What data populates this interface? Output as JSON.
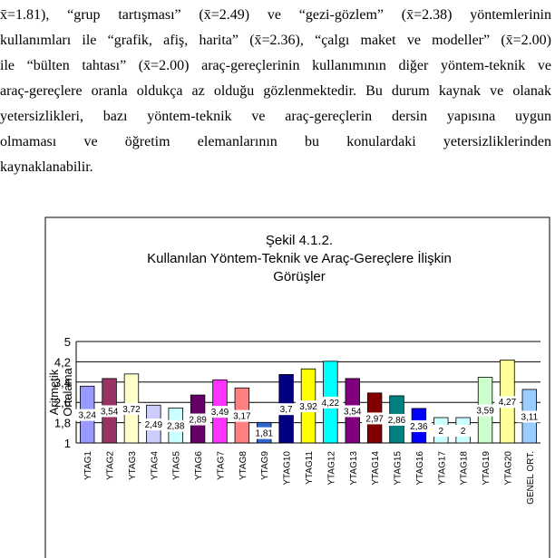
{
  "text": {
    "lines": [
      "x̄=1.81), “grup tartışması” (x̄=2.49) ve “gezi-gözlem” (x̄=2.38) yöntemlerinin",
      "kullanımları ile “grafik, afiş, harita” (x̄=2.36), “çalgı maket ve modeller” (x̄=2.00)",
      "ile “bülten tahtası” (x̄=2.00) araç-gereçlerinin kullanımının diğer yöntem-teknik ve",
      "araç-gereçlere oranla oldukça az olduğu gözlenmektedir. Bu durum kaynak ve olanak",
      "yetersizlikleri, bazı yöntem-teknik ve araç-gereçlerin dersin yapısına uygun",
      "olmaması ve öğretim elemanlarının bu konulardaki yetersizliklerinden",
      "kaynaklanabilir."
    ]
  },
  "chart_data": {
    "type": "bar",
    "title": [
      "Şekil 4.1.2.",
      "Kullanılan Yöntem-Teknik ve Araç-Gereçlere İlişkin",
      "Görüşler"
    ],
    "y_label": [
      "Aritmetik",
      "Ortalama"
    ],
    "categories": [
      "YTAG1",
      "YTAG2",
      "YTAG3",
      "YTAG4",
      "YTAG5",
      "YTAG6",
      "YTAG7",
      "YTAG8",
      "YTAG9",
      "YTAG10",
      "YTAG11",
      "YTAG12",
      "YTAG13",
      "YTAG14",
      "YTAG15",
      "YTAG16",
      "YTAG17",
      "YTAG18",
      "YTAG19",
      "YTAG20",
      "GENEL ORT."
    ],
    "values": [
      3.24,
      3.54,
      3.72,
      2.49,
      2.38,
      2.89,
      3.49,
      3.17,
      1.81,
      3.7,
      3.92,
      4.22,
      3.54,
      2.97,
      2.86,
      2.36,
      2,
      2,
      3.59,
      4.27,
      3.11
    ],
    "value_labels": [
      "3,24",
      "3,54",
      "3,72",
      "2,49",
      "2,38",
      "2,89",
      "3,49",
      "3,17",
      "1,81",
      "3,7",
      "3,92",
      "4,22",
      "3,54",
      "2,97",
      "2,86",
      "2,36",
      "2",
      "2",
      "3,59",
      "4,27",
      "3,11"
    ],
    "colors": [
      "#9999ff",
      "#993366",
      "#ffffcc",
      "#ccccff",
      "#ccffff",
      "#660066",
      "#ff33ff",
      "#ff8080",
      "#3366cc",
      "#000080",
      "#ffff00",
      "#00ffff",
      "#800080",
      "#800000",
      "#008080",
      "#0000ff",
      "#ccffff",
      "#ccffff",
      "#ccffcc",
      "#ffff99",
      "#99ccff"
    ],
    "ylim": [
      1,
      5
    ],
    "yticks": [
      1,
      {
        "value": 1.8,
        "label": "1,8"
      },
      {
        "value": 2.6,
        "label": "2,6"
      },
      {
        "value": 3.4,
        "label": "3,4"
      },
      {
        "value": 4.2,
        "label": "4,2"
      },
      5
    ],
    "grid": true
  }
}
